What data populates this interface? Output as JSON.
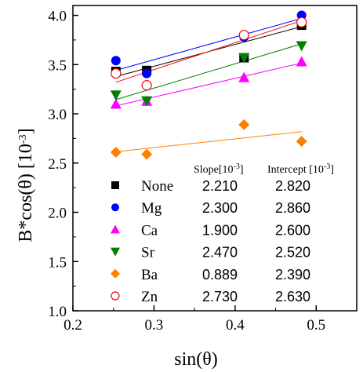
{
  "chart_data": {
    "type": "scatter",
    "xlabel": "sin(θ)",
    "ylabel_main": "B*cos(θ) [10",
    "ylabel_exp": "-3",
    "ylabel_end": "]",
    "xlim": [
      0.2,
      0.55
    ],
    "ylim": [
      1.0,
      4.1
    ],
    "x_ticks": [
      "0.2",
      "0.3",
      "0.4",
      "0.5"
    ],
    "y_ticks": [
      "1.0",
      "1.5",
      "2.0",
      "2.5",
      "3.0",
      "3.5",
      "4.0"
    ],
    "table_headers": {
      "slope": "Slope[10",
      "slope_exp": "-3",
      "slope_end": "]",
      "intercept": "Intercept [10",
      "intercept_exp": "-3",
      "intercept_end": "]"
    },
    "series": [
      {
        "name": "None",
        "color": "#000000",
        "marker": "square-filled",
        "x": [
          0.253,
          0.291,
          0.411,
          0.482
        ],
        "y": [
          3.43,
          3.44,
          3.57,
          3.9
        ],
        "slope": "2.210",
        "intercept": "2.820",
        "fit": [
          2.82,
          2.21
        ]
      },
      {
        "name": "Mg",
        "color": "#0000ff",
        "marker": "circle-filled",
        "x": [
          0.253,
          0.291,
          0.411,
          0.482
        ],
        "y": [
          3.54,
          3.41,
          3.78,
          4.0
        ],
        "slope": "2.300",
        "intercept": "2.860",
        "fit": [
          2.86,
          2.3
        ]
      },
      {
        "name": "Ca",
        "color": "#ff00ff",
        "marker": "triangle-up",
        "x": [
          0.253,
          0.291,
          0.411,
          0.482
        ],
        "y": [
          3.1,
          3.13,
          3.37,
          3.53
        ],
        "slope": "1.900",
        "intercept": "2.600",
        "fit": [
          2.6,
          1.9
        ]
      },
      {
        "name": "Sr",
        "color": "#008000",
        "marker": "triangle-down",
        "x": [
          0.253,
          0.291,
          0.411,
          0.482
        ],
        "y": [
          3.19,
          3.13,
          3.57,
          3.69
        ],
        "slope": "2.470",
        "intercept": "2.520",
        "fit": [
          2.52,
          2.47
        ]
      },
      {
        "name": "Ba",
        "color": "#ff8000",
        "marker": "diamond-filled",
        "x": [
          0.253,
          0.291,
          0.411,
          0.482
        ],
        "y": [
          2.61,
          2.59,
          2.89,
          2.72
        ],
        "slope": "0.889",
        "intercept": "2.390",
        "fit": [
          2.39,
          0.889
        ]
      },
      {
        "name": "Zn",
        "color": "#ff0000",
        "marker": "circle-open",
        "x": [
          0.253,
          0.291,
          0.411,
          0.482
        ],
        "y": [
          3.41,
          3.29,
          3.8,
          3.93
        ],
        "slope": "2.730",
        "intercept": "2.630",
        "fit": [
          2.63,
          2.73
        ]
      }
    ]
  }
}
